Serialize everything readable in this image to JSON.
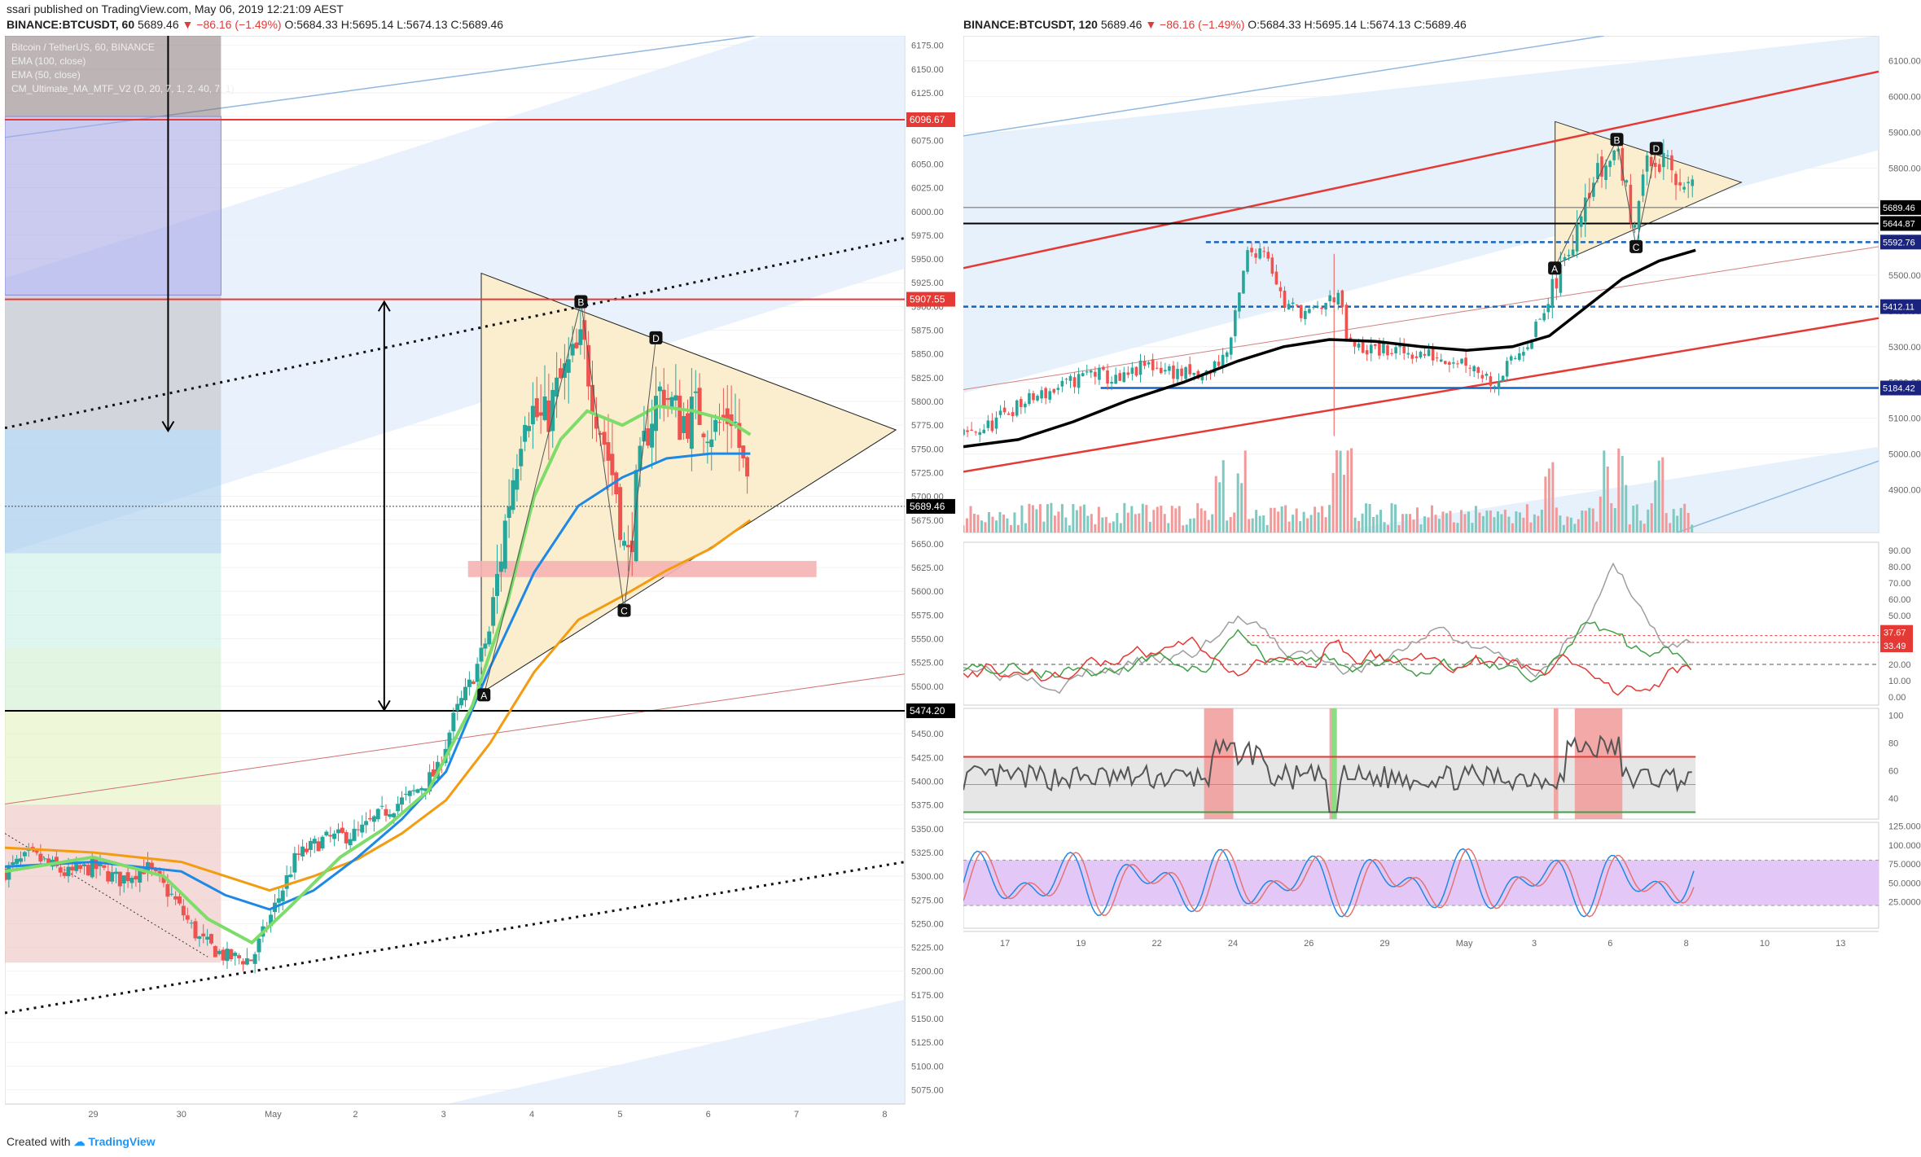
{
  "header": {
    "publisher": "ssari published on TradingView.com, May 06, 2019 12:21:09 AEST",
    "left_symbol": "BINANCE:BTCUSDT, 60",
    "right_symbol": "BINANCE:BTCUSDT, 120",
    "last": "5689.46",
    "change": "▼ −86.16 (−1.49%)",
    "ohlc_open_label": "O:",
    "ohlc_open": "5684.33",
    "ohlc_high_label": "H:",
    "ohlc_high": "5695.14",
    "ohlc_low_label": "L:",
    "ohlc_low": "5674.13",
    "ohlc_close_label": "C:",
    "ohlc_close": "5689.46"
  },
  "legend_left": [
    "Bitcoin / TetherUS, 60, BINANCE",
    "EMA (100, close)",
    "EMA (50, close)",
    "CM_Ultimate_MA_MTF_V2 (D, 20, 7, 1, 2, 40, 7, 1)"
  ],
  "footer": {
    "created_with": "Created with",
    "brand": "TradingView"
  },
  "colors": {
    "up": "#26a69a",
    "down": "#ef5350",
    "red_line": "#e53935",
    "blue_line": "#1565c0",
    "triangle_fill": "#fbeecf",
    "channel_fill": "#e3eefb",
    "ema50": "#f39c12",
    "ema100": "#1e88e5",
    "ma_green": "#7ddc6a"
  },
  "chart_data": [
    {
      "type": "candlestick",
      "name": "left",
      "x_ticks": [
        "29",
        "30",
        "May",
        "2",
        "3",
        "4",
        "5",
        "6",
        "7",
        "8"
      ],
      "ylim": [
        5060,
        6185
      ],
      "y_ticks": [
        5075,
        5100,
        5125,
        5150,
        5175,
        5200,
        5225,
        5250,
        5275,
        5300,
        5325,
        5350,
        5375,
        5400,
        5425,
        5450,
        5475,
        5500,
        5525,
        5550,
        5575,
        5600,
        5625,
        5650,
        5675,
        5700,
        5725,
        5750,
        5775,
        5800,
        5825,
        5850,
        5875,
        5900,
        5925,
        5950,
        5975,
        6000,
        6025,
        6050,
        6075,
        6100,
        6125,
        6150,
        6175
      ],
      "price_labels": [
        {
          "text": "6096.67",
          "value": 6096.67,
          "color": "#e53935"
        },
        {
          "text": "5907.55",
          "value": 5907.55,
          "color": "#e53935"
        },
        {
          "text": "5689.46",
          "value": 5689.46,
          "color": "#000000"
        },
        {
          "text": "5474.20",
          "value": 5474.2,
          "color": "#000000"
        }
      ],
      "pattern_points": [
        {
          "label": "A",
          "x": 5.43,
          "y": 5491
        },
        {
          "label": "B",
          "x": 6.53,
          "y": 5905
        },
        {
          "label": "C",
          "x": 7.02,
          "y": 5580
        },
        {
          "label": "D",
          "x": 7.38,
          "y": 5867
        }
      ],
      "close_path": [
        {
          "x": 0.0,
          "y": 5305
        },
        {
          "x": 0.3,
          "y": 5322
        },
        {
          "x": 0.7,
          "y": 5302
        },
        {
          "x": 1.0,
          "y": 5310
        },
        {
          "x": 1.3,
          "y": 5296
        },
        {
          "x": 1.6,
          "y": 5310
        },
        {
          "x": 1.9,
          "y": 5278
        },
        {
          "x": 2.2,
          "y": 5234
        },
        {
          "x": 2.5,
          "y": 5215
        },
        {
          "x": 2.8,
          "y": 5212
        },
        {
          "x": 3.0,
          "y": 5255
        },
        {
          "x": 3.3,
          "y": 5320
        },
        {
          "x": 3.6,
          "y": 5338
        },
        {
          "x": 4.0,
          "y": 5345
        },
        {
          "x": 4.3,
          "y": 5368
        },
        {
          "x": 4.6,
          "y": 5385
        },
        {
          "x": 4.9,
          "y": 5410
        },
        {
          "x": 5.1,
          "y": 5470
        },
        {
          "x": 5.3,
          "y": 5508
        },
        {
          "x": 5.5,
          "y": 5560
        },
        {
          "x": 5.7,
          "y": 5690
        },
        {
          "x": 5.9,
          "y": 5800
        },
        {
          "x": 6.1,
          "y": 5775
        },
        {
          "x": 6.3,
          "y": 5820
        },
        {
          "x": 6.55,
          "y": 5860
        },
        {
          "x": 6.75,
          "y": 5775
        },
        {
          "x": 6.95,
          "y": 5700
        },
        {
          "x": 7.05,
          "y": 5620
        },
        {
          "x": 7.15,
          "y": 5700
        },
        {
          "x": 7.3,
          "y": 5780
        },
        {
          "x": 7.45,
          "y": 5815
        },
        {
          "x": 7.65,
          "y": 5780
        },
        {
          "x": 7.85,
          "y": 5790
        },
        {
          "x": 8.05,
          "y": 5770
        },
        {
          "x": 8.25,
          "y": 5790
        },
        {
          "x": 8.45,
          "y": 5689
        }
      ],
      "series": [
        {
          "name": "EMA (50, close)",
          "color": "#f39c12",
          "points": [
            {
              "x": 0.0,
              "y": 5330
            },
            {
              "x": 1.0,
              "y": 5325
            },
            {
              "x": 2.0,
              "y": 5315
            },
            {
              "x": 2.5,
              "y": 5300
            },
            {
              "x": 3.0,
              "y": 5285
            },
            {
              "x": 3.5,
              "y": 5300
            },
            {
              "x": 4.0,
              "y": 5318
            },
            {
              "x": 4.5,
              "y": 5345
            },
            {
              "x": 5.0,
              "y": 5380
            },
            {
              "x": 5.5,
              "y": 5440
            },
            {
              "x": 6.0,
              "y": 5515
            },
            {
              "x": 6.5,
              "y": 5570
            },
            {
              "x": 7.0,
              "y": 5595
            },
            {
              "x": 7.5,
              "y": 5622
            },
            {
              "x": 8.0,
              "y": 5645
            },
            {
              "x": 8.45,
              "y": 5675
            }
          ]
        },
        {
          "name": "EMA (100, close)",
          "color": "#1e88e5",
          "points": [
            {
              "x": 0.0,
              "y": 5310
            },
            {
              "x": 1.0,
              "y": 5315
            },
            {
              "x": 2.0,
              "y": 5305
            },
            {
              "x": 2.5,
              "y": 5280
            },
            {
              "x": 3.0,
              "y": 5265
            },
            {
              "x": 3.5,
              "y": 5285
            },
            {
              "x": 4.0,
              "y": 5320
            },
            {
              "x": 4.5,
              "y": 5360
            },
            {
              "x": 5.0,
              "y": 5410
            },
            {
              "x": 5.5,
              "y": 5520
            },
            {
              "x": 6.0,
              "y": 5620
            },
            {
              "x": 6.5,
              "y": 5690
            },
            {
              "x": 7.0,
              "y": 5720
            },
            {
              "x": 7.5,
              "y": 5740
            },
            {
              "x": 8.0,
              "y": 5745
            },
            {
              "x": 8.45,
              "y": 5745
            }
          ]
        },
        {
          "name": "CM_Ultimate_MA_MTF_V2",
          "color": "#7ddc6a",
          "points": [
            {
              "x": 0.0,
              "y": 5305
            },
            {
              "x": 1.0,
              "y": 5320
            },
            {
              "x": 1.8,
              "y": 5300
            },
            {
              "x": 2.3,
              "y": 5255
            },
            {
              "x": 2.8,
              "y": 5230
            },
            {
              "x": 3.2,
              "y": 5265
            },
            {
              "x": 3.8,
              "y": 5320
            },
            {
              "x": 4.3,
              "y": 5350
            },
            {
              "x": 4.8,
              "y": 5390
            },
            {
              "x": 5.3,
              "y": 5480
            },
            {
              "x": 5.7,
              "y": 5590
            },
            {
              "x": 6.0,
              "y": 5700
            },
            {
              "x": 6.3,
              "y": 5760
            },
            {
              "x": 6.6,
              "y": 5790
            },
            {
              "x": 7.0,
              "y": 5775
            },
            {
              "x": 7.4,
              "y": 5795
            },
            {
              "x": 7.8,
              "y": 5790
            },
            {
              "x": 8.2,
              "y": 5780
            },
            {
              "x": 8.45,
              "y": 5765
            }
          ]
        }
      ]
    },
    {
      "type": "candlestick",
      "name": "right",
      "x_ticks": [
        "17",
        "19",
        "22",
        "24",
        "26",
        "29",
        "May",
        "3",
        "6",
        "8",
        "10",
        "13"
      ],
      "ylim": [
        4780,
        6170
      ],
      "y_ticks": [
        4900,
        5000,
        5100,
        5200,
        5300,
        5400,
        5500,
        5600,
        5700,
        5800,
        5900,
        6000,
        6100
      ],
      "price_labels": [
        {
          "text": "5689.46",
          "value": 5689.46,
          "color": "#000000"
        },
        {
          "text": "5644.87",
          "value": 5644.87,
          "color": "#000000"
        },
        {
          "text": "5592.76",
          "value": 5592.76,
          "color": "#1a237e"
        },
        {
          "text": "5412.11",
          "value": 5412.11,
          "color": "#1a237e"
        },
        {
          "text": "5184.42",
          "value": 5184.42,
          "color": "#1a237e"
        }
      ],
      "pattern_points": [
        {
          "label": "A",
          "x": 0.646,
          "y": 5520
        },
        {
          "label": "B",
          "x": 0.714,
          "y": 5880
        },
        {
          "label": "C",
          "x": 0.735,
          "y": 5580
        },
        {
          "label": "D",
          "x": 0.757,
          "y": 5855
        }
      ],
      "close_path": [
        {
          "x": 0.0,
          "y": 5050
        },
        {
          "x": 0.03,
          "y": 5080
        },
        {
          "x": 0.05,
          "y": 5120
        },
        {
          "x": 0.08,
          "y": 5160
        },
        {
          "x": 0.11,
          "y": 5190
        },
        {
          "x": 0.14,
          "y": 5230
        },
        {
          "x": 0.17,
          "y": 5200
        },
        {
          "x": 0.2,
          "y": 5250
        },
        {
          "x": 0.23,
          "y": 5230
        },
        {
          "x": 0.26,
          "y": 5210
        },
        {
          "x": 0.29,
          "y": 5290
        },
        {
          "x": 0.3,
          "y": 5420
        },
        {
          "x": 0.31,
          "y": 5560
        },
        {
          "x": 0.33,
          "y": 5580
        },
        {
          "x": 0.35,
          "y": 5420
        },
        {
          "x": 0.38,
          "y": 5390
        },
        {
          "x": 0.4,
          "y": 5430
        },
        {
          "x": 0.41,
          "y": 5450
        },
        {
          "x": 0.42,
          "y": 5300
        },
        {
          "x": 0.45,
          "y": 5290
        },
        {
          "x": 0.5,
          "y": 5280
        },
        {
          "x": 0.55,
          "y": 5260
        },
        {
          "x": 0.58,
          "y": 5200
        },
        {
          "x": 0.6,
          "y": 5260
        },
        {
          "x": 0.62,
          "y": 5330
        },
        {
          "x": 0.64,
          "y": 5420
        },
        {
          "x": 0.66,
          "y": 5560
        },
        {
          "x": 0.68,
          "y": 5750
        },
        {
          "x": 0.7,
          "y": 5800
        },
        {
          "x": 0.715,
          "y": 5860
        },
        {
          "x": 0.73,
          "y": 5650
        },
        {
          "x": 0.745,
          "y": 5800
        },
        {
          "x": 0.76,
          "y": 5820
        },
        {
          "x": 0.78,
          "y": 5760
        },
        {
          "x": 0.79,
          "y": 5790
        },
        {
          "x": 0.8,
          "y": 5689
        }
      ],
      "series": [
        {
          "name": "MA",
          "color": "#000000",
          "points": [
            {
              "x": 0.0,
              "y": 5020
            },
            {
              "x": 0.06,
              "y": 5040
            },
            {
              "x": 0.12,
              "y": 5090
            },
            {
              "x": 0.18,
              "y": 5150
            },
            {
              "x": 0.24,
              "y": 5200
            },
            {
              "x": 0.3,
              "y": 5260
            },
            {
              "x": 0.35,
              "y": 5300
            },
            {
              "x": 0.4,
              "y": 5320
            },
            {
              "x": 0.45,
              "y": 5315
            },
            {
              "x": 0.5,
              "y": 5300
            },
            {
              "x": 0.55,
              "y": 5290
            },
            {
              "x": 0.6,
              "y": 5300
            },
            {
              "x": 0.64,
              "y": 5330
            },
            {
              "x": 0.68,
              "y": 5410
            },
            {
              "x": 0.72,
              "y": 5490
            },
            {
              "x": 0.76,
              "y": 5540
            },
            {
              "x": 0.8,
              "y": 5570
            }
          ]
        }
      ],
      "volume": {
        "ylim": [
          0,
          100
        ],
        "peak_positions": [
          0.28,
          0.305,
          0.41,
          0.42,
          0.64,
          0.7,
          0.72,
          0.76
        ]
      },
      "indicator_dmi": {
        "ylim": [
          -5,
          95
        ],
        "y_ticks": [
          "0.00",
          "10.00",
          "20.00",
          "30.00",
          "40.00",
          "50.00",
          "60.00",
          "70.00",
          "80.00",
          "90.00"
        ],
        "labels": [
          {
            "text": "37.67",
            "value": 37.67
          },
          {
            "text": "33.49",
            "value": 33.49
          }
        ],
        "dashed_level": 20
      },
      "indicator_rsi": {
        "ylim": [
          25,
          105
        ],
        "y_ticks": [
          "40",
          "60",
          "80",
          "100"
        ],
        "upper": 70,
        "lower": 30
      },
      "indicator_stoch": {
        "ylim": [
          -10,
          130
        ],
        "y_ticks": [
          "25.0000",
          "50.0000",
          "75.0000",
          "100.0000",
          "125.0000"
        ],
        "upper": 80,
        "lower": 20
      }
    }
  ]
}
